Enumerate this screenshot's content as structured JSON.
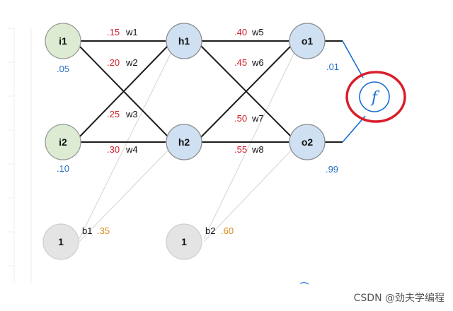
{
  "colors": {
    "input_fill": "#dcebd2",
    "hidden_fill": "#cfe0f3",
    "bias_fill": "#e4e4e4",
    "weight_red": "#d2202c",
    "bias_orange": "#e08a1e",
    "value_blue": "#2b6fc4",
    "highlight_red": "#d81e2a",
    "activation_blue": "#1a6fd1"
  },
  "nodes": {
    "i1": {
      "label": "i1",
      "value": ".05"
    },
    "i2": {
      "label": "i2",
      "value": ".10"
    },
    "h1": {
      "label": "h1"
    },
    "h2": {
      "label": "h2"
    },
    "o1": {
      "label": "o1",
      "value": ".01"
    },
    "o2": {
      "label": "o2",
      "value": ".99"
    },
    "b1": {
      "label": "1",
      "name": "b1",
      "value": ".35"
    },
    "b2": {
      "label": "1",
      "name": "b2",
      "value": ".60"
    }
  },
  "weights": {
    "w1": {
      "name": "w1",
      "value": ".15"
    },
    "w2": {
      "name": "w2",
      "value": ".20"
    },
    "w3": {
      "name": "w3",
      "value": ".25"
    },
    "w4": {
      "name": "w4",
      "value": ".30"
    },
    "w5": {
      "name": "w5",
      "value": ".40"
    },
    "w6": {
      "name": "w6",
      "value": ".45"
    },
    "w7": {
      "name": "w7",
      "value": ".50"
    },
    "w8": {
      "name": "w8",
      "value": ".55"
    }
  },
  "activation": {
    "symbol": "f",
    "icon": "function-icon"
  },
  "watermark": "CSDN @劲夫学编程"
}
